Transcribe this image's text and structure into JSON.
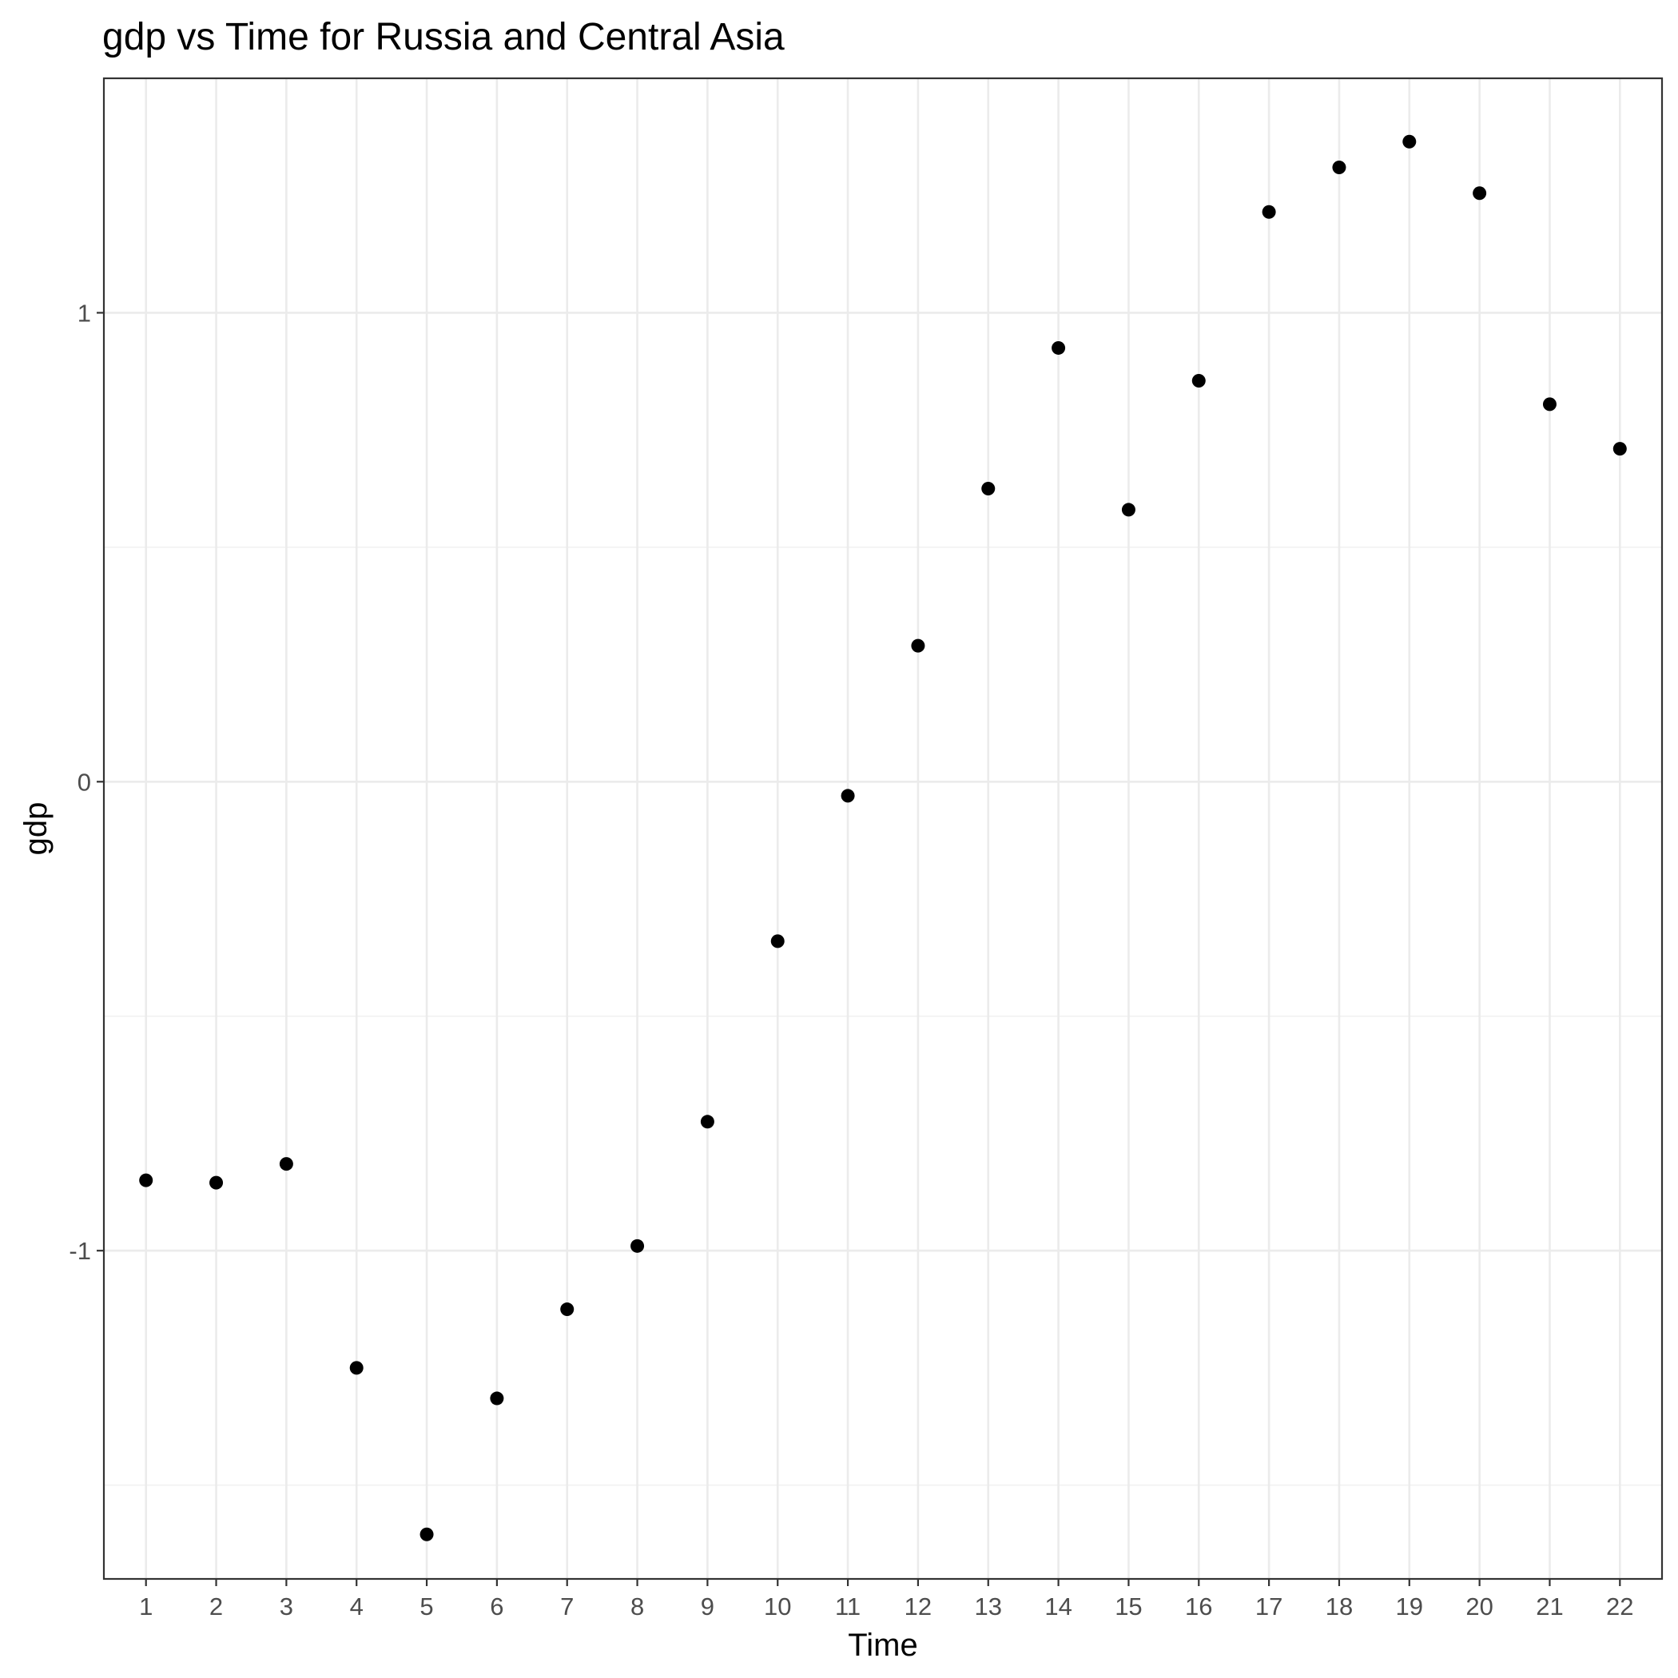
{
  "chart_data": {
    "type": "scatter",
    "title": "gdp  vs Time for Russia and Central Asia",
    "xlabel": "Time",
    "ylabel": "gdp",
    "x": [
      1,
      2,
      3,
      4,
      5,
      6,
      7,
      8,
      9,
      10,
      11,
      12,
      13,
      14,
      15,
      16,
      17,
      18,
      19,
      20,
      21,
      22
    ],
    "x_ticks": [
      "1",
      "2",
      "3",
      "4",
      "5",
      "6",
      "7",
      "8",
      "9",
      "10",
      "11",
      "12",
      "13",
      "14",
      "15",
      "16",
      "17",
      "18",
      "19",
      "20",
      "21",
      "22"
    ],
    "y": [
      -0.85,
      -0.855,
      -0.815,
      -1.25,
      -1.605,
      -1.315,
      -1.125,
      -0.99,
      -0.725,
      -0.34,
      -0.03,
      0.29,
      0.625,
      0.925,
      0.58,
      0.855,
      1.215,
      1.31,
      1.365,
      1.255,
      0.805,
      0.71
    ],
    "y_ticks": [
      {
        "value": -1,
        "label": "-1"
      },
      {
        "value": 0,
        "label": "0"
      },
      {
        "value": 1,
        "label": "1"
      }
    ],
    "xlim": [
      0.4,
      22.6
    ],
    "ylim": [
      -1.7,
      1.5
    ],
    "point_color": "#000000",
    "grid": true,
    "legend": "none"
  }
}
